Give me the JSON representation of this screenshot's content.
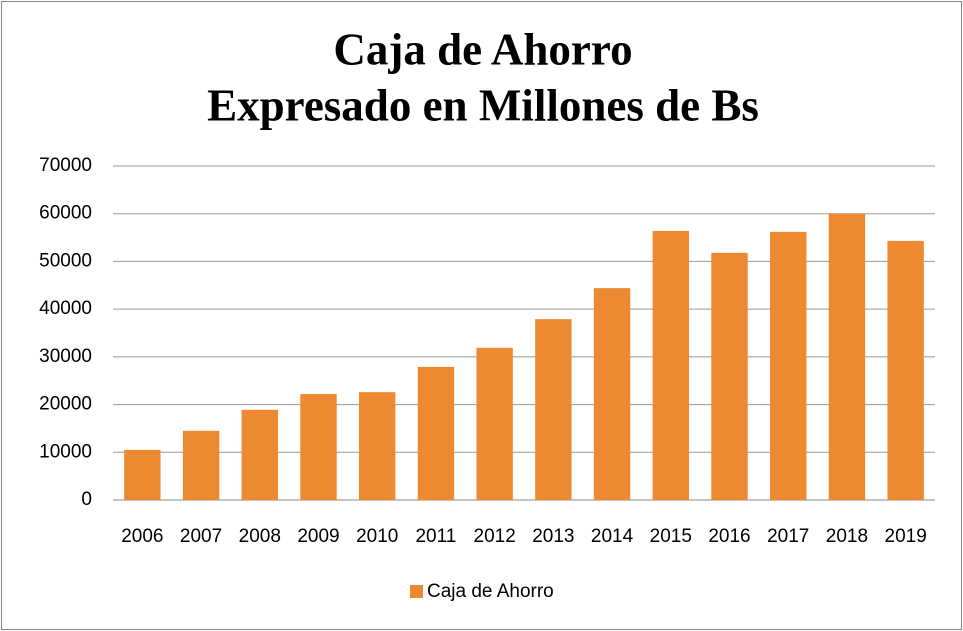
{
  "chart_data": {
    "type": "bar",
    "title": [
      "Caja de Ahorro",
      "Expresado en Millones de Bs"
    ],
    "categories": [
      "2006",
      "2007",
      "2008",
      "2009",
      "2010",
      "2011",
      "2012",
      "2013",
      "2014",
      "2015",
      "2016",
      "2017",
      "2018",
      "2019"
    ],
    "series": [
      {
        "name": "Caja de Ahorro",
        "color": "#ed8a31",
        "values": [
          10500,
          14500,
          18900,
          22200,
          22600,
          27900,
          31900,
          37900,
          44400,
          56400,
          51800,
          56200,
          60000,
          54300
        ]
      }
    ],
    "ylim": [
      0,
      70000
    ],
    "yticks": [
      0,
      10000,
      20000,
      30000,
      40000,
      50000,
      60000,
      70000
    ],
    "grid": true,
    "legend": "bottom"
  }
}
